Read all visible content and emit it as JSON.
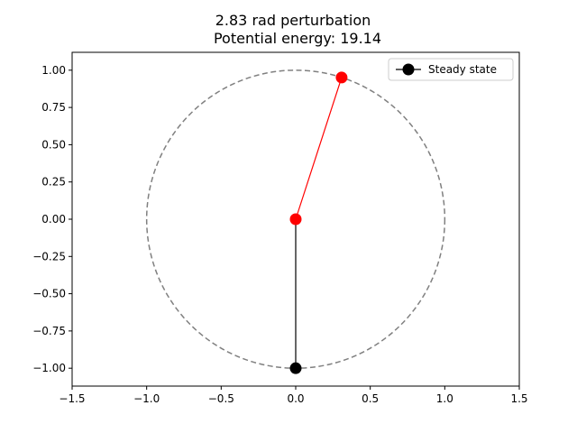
{
  "chart_data": {
    "type": "scatter",
    "title_line1": "2.83 rad perturbation",
    "title_line2": "Potential energy: 19.14",
    "xlabel": "",
    "ylabel": "",
    "xlim": [
      -1.5,
      1.5
    ],
    "ylim": [
      -1.12,
      1.12
    ],
    "x_ticks": [
      -1.5,
      -1.0,
      -0.5,
      0.0,
      0.5,
      1.0,
      1.5
    ],
    "x_tick_labels": [
      "−1.5",
      "−1.0",
      "−0.5",
      "0.0",
      "0.5",
      "1.0",
      "1.5"
    ],
    "y_ticks": [
      -1.0,
      -0.75,
      -0.5,
      -0.25,
      0.0,
      0.25,
      0.5,
      0.75,
      1.0
    ],
    "y_tick_labels": [
      "−1.00",
      "−0.75",
      "−0.50",
      "−0.25",
      "0.00",
      "0.25",
      "0.50",
      "0.75",
      "1.00"
    ],
    "grid": false,
    "legend_position": "top-right",
    "circle": {
      "center": [
        0,
        0
      ],
      "radius": 1.0,
      "color": "#808080",
      "style": "dashed"
    },
    "series": [
      {
        "name": "Steady state",
        "color": "#000000",
        "points": [
          [
            0,
            0
          ],
          [
            0,
            -1.0
          ]
        ],
        "marker_points": [
          [
            0,
            -1.0
          ]
        ]
      },
      {
        "color": "#ff0000",
        "points": [
          [
            0,
            0
          ],
          [
            0.308,
            0.951
          ]
        ],
        "marker_points": [
          [
            0,
            0
          ],
          [
            0.308,
            0.951
          ]
        ]
      }
    ]
  }
}
